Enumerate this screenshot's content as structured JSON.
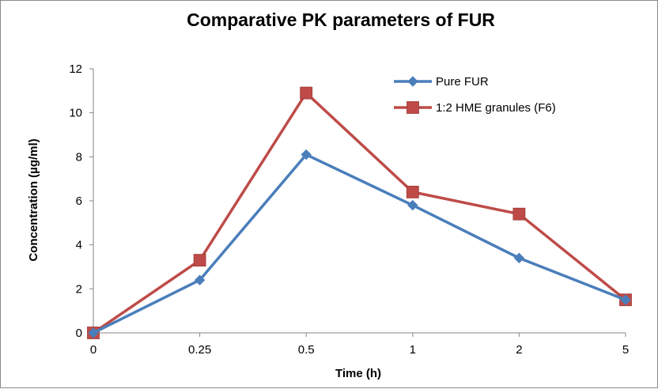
{
  "chart_data": {
    "type": "line",
    "title": "Comparative PK parameters of FUR",
    "xlabel": "Time (h)",
    "ylabel": "Concentration (µg/ml)",
    "categories": [
      "0",
      "0.25",
      "0.5",
      "1",
      "2",
      "5"
    ],
    "yticks": [
      "0",
      "2",
      "4",
      "6",
      "8",
      "10",
      "12"
    ],
    "ylim": [
      0,
      12
    ],
    "grid": false,
    "legend_position": "top-right",
    "series": [
      {
        "name": "Pure FUR",
        "color": "#4a7ebb",
        "marker": "diamond",
        "values": [
          0,
          2.4,
          8.1,
          5.8,
          3.4,
          1.5
        ]
      },
      {
        "name": "1:2 HME granules (F6)",
        "color": "#be4b48",
        "marker": "square",
        "values": [
          0,
          3.3,
          10.9,
          6.4,
          5.4,
          1.5
        ]
      }
    ]
  }
}
